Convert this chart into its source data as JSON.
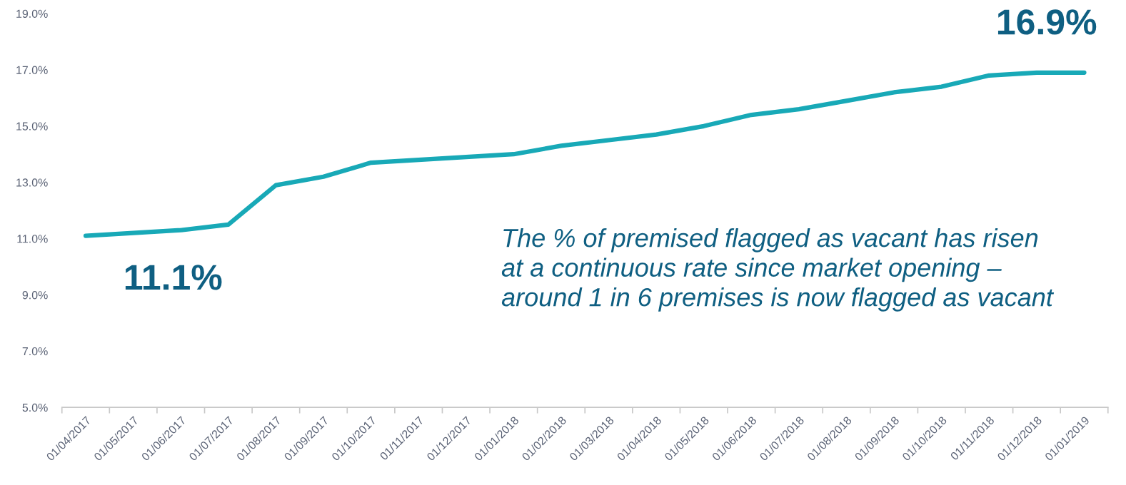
{
  "chart_data": {
    "type": "line",
    "categories": [
      "01/04/2017",
      "01/05/2017",
      "01/06/2017",
      "01/07/2017",
      "01/08/2017",
      "01/09/2017",
      "01/10/2017",
      "01/11/2017",
      "01/12/2017",
      "01/01/2018",
      "01/02/2018",
      "01/03/2018",
      "01/04/2018",
      "01/05/2018",
      "01/06/2018",
      "01/07/2018",
      "01/08/2018",
      "01/09/2018",
      "01/10/2018",
      "01/11/2018",
      "01/12/2018",
      "01/01/2019"
    ],
    "series": [
      {
        "color": "#18a9b7",
        "values": [
          11.1,
          11.2,
          11.3,
          11.5,
          12.9,
          13.2,
          13.7,
          13.8,
          13.9,
          14.0,
          14.3,
          14.5,
          14.7,
          15.0,
          15.4,
          15.6,
          15.9,
          16.2,
          16.4,
          16.8,
          16.9,
          16.9
        ]
      }
    ],
    "ylim": [
      5,
      19
    ],
    "yticks": [
      {
        "value": 5,
        "label": "5.0%"
      },
      {
        "value": 7,
        "label": "7.0%"
      },
      {
        "value": 9,
        "label": "9.0%"
      },
      {
        "value": 11,
        "label": "11.0%"
      },
      {
        "value": 13,
        "label": "13.0%"
      },
      {
        "value": 15,
        "label": "15.0%"
      },
      {
        "value": 17,
        "label": "17.0%"
      },
      {
        "value": 19,
        "label": "19.0%"
      }
    ],
    "annotations": [
      {
        "text": "11.1%",
        "x": "01/04/2017",
        "y": 11.1
      },
      {
        "text": "16.9%",
        "x": "01/01/2019",
        "y": 16.9
      },
      "The % of premised flagged as vacant has risen\nat a continuous rate since market opening –\naround 1 in 6 premises is now flagged as vacant"
    ],
    "grid": false,
    "marker": "none",
    "line_style": "solid"
  }
}
